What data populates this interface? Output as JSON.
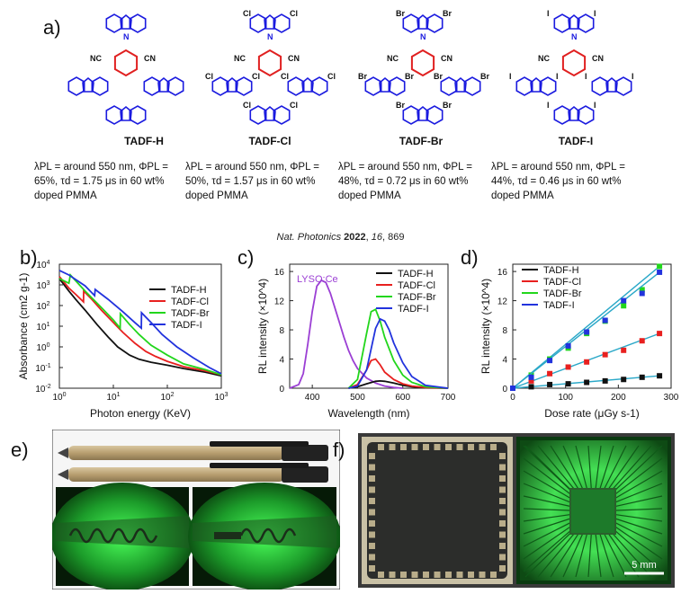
{
  "panels": {
    "a": "a)",
    "b": "b)",
    "c": "c)",
    "d": "d)",
    "e": "e)",
    "f": "f)"
  },
  "molecules": [
    {
      "name": "TADF-H",
      "halogen": "",
      "props": "λPL = around 550 nm, ΦPL = 65%, τd = 1.75 μs in 60 wt% doped PMMA"
    },
    {
      "name": "TADF-Cl",
      "halogen": "Cl",
      "props": "λPL = around 550 nm, ΦPL = 50%, τd = 1.57 μs in 60 wt% doped PMMA"
    },
    {
      "name": "TADF-Br",
      "halogen": "Br",
      "props": "λPL = around 550 nm, ΦPL = 48%, τd = 0.72 μs in 60 wt% doped PMMA"
    },
    {
      "name": "TADF-I",
      "halogen": "I",
      "props": "λPL = around 550 nm, ΦPL = 44%, τd = 0.46 μs in 60 wt% doped PMMA"
    }
  ],
  "structure": {
    "cn": "CN",
    "nc": "NC",
    "n": "N"
  },
  "citation": {
    "journal": "Nat. Photonics",
    "year": "2022",
    "volume": "16",
    "page": ", 869"
  },
  "colors": {
    "h": "#111111",
    "cl": "#e8201f",
    "br": "#22d61c",
    "i": "#2233dd",
    "lyso": "#9b3fd4",
    "mol": "#1a1adf",
    "core": "#e02020"
  },
  "photo_f_scale": "5 mm",
  "chart_data": [
    {
      "type": "line",
      "panel": "b",
      "xlabel": "Photon energy (KeV)",
      "ylabel": "Absorbance (cm2 g-1)",
      "xscale": "log",
      "yscale": "log",
      "xlim": [
        1,
        1000
      ],
      "ylim": [
        0.01,
        10000
      ],
      "xticks": [
        "10^0",
        "10^1",
        "10^2",
        "10^3"
      ],
      "yticks": [
        "10^-2",
        "10^-1",
        "10^0",
        "10^1",
        "10^2",
        "10^3",
        "10^4"
      ],
      "legend": [
        "TADF-H",
        "TADF-Cl",
        "TADF-Br",
        "TADF-I"
      ],
      "series": [
        {
          "name": "TADF-H",
          "x": [
            1,
            1.5,
            2,
            3,
            5,
            8,
            12,
            20,
            30,
            50,
            100,
            200,
            500,
            1000
          ],
          "y": [
            2000,
            500,
            200,
            60,
            12,
            3,
            1,
            0.4,
            0.25,
            0.18,
            0.13,
            0.09,
            0.06,
            0.04
          ]
        },
        {
          "name": "TADF-Cl",
          "x": [
            1,
            1.5,
            2,
            2.8,
            2.82,
            4,
            6,
            10,
            15,
            25,
            40,
            60,
            100,
            200,
            500,
            1000
          ],
          "y": [
            2500,
            700,
            350,
            150,
            500,
            200,
            60,
            15,
            5,
            1.5,
            0.6,
            0.35,
            0.2,
            0.11,
            0.07,
            0.045
          ]
        },
        {
          "name": "TADF-Br",
          "x": [
            1,
            1.5,
            1.6,
            3,
            6,
            10,
            13.4,
            13.5,
            20,
            30,
            50,
            100,
            200,
            500,
            1000
          ],
          "y": [
            2000,
            1200,
            3000,
            500,
            80,
            20,
            8,
            40,
            12,
            4,
            1.2,
            0.4,
            0.15,
            0.08,
            0.045
          ]
        },
        {
          "name": "TADF-I",
          "x": [
            1,
            1.5,
            3,
            4.5,
            4.6,
            8,
            15,
            25,
            33,
            33.2,
            50,
            80,
            150,
            300,
            600,
            1000
          ],
          "y": [
            5000,
            3000,
            900,
            300,
            600,
            200,
            50,
            15,
            8,
            45,
            15,
            4,
            1,
            0.3,
            0.1,
            0.05
          ]
        }
      ]
    },
    {
      "type": "line",
      "panel": "c",
      "xlabel": "Wavelength (nm)",
      "ylabel": "RL intensity (×10^4)",
      "xlim": [
        350,
        700
      ],
      "ylim": [
        0,
        17
      ],
      "xticks": [
        "400",
        "500",
        "600",
        "700"
      ],
      "yticks": [
        "0",
        "4",
        "8",
        "12",
        "16"
      ],
      "legend": [
        "TADF-H",
        "TADF-Cl",
        "TADF-Br",
        "TADF-I"
      ],
      "annotation": "LYSO:Ce",
      "series": [
        {
          "name": "LYSO:Ce",
          "x": [
            350,
            370,
            380,
            390,
            400,
            410,
            420,
            430,
            440,
            450,
            460,
            470,
            480,
            490,
            500,
            520,
            540,
            560,
            580,
            600
          ],
          "y": [
            0,
            0.5,
            2,
            6,
            10.5,
            14,
            14.8,
            14.5,
            13,
            11,
            9,
            7,
            5.2,
            3.8,
            2.7,
            1.4,
            0.7,
            0.3,
            0.1,
            0
          ]
        },
        {
          "name": "TADF-H",
          "x": [
            480,
            500,
            520,
            540,
            550,
            560,
            580,
            600,
            620,
            650,
            700
          ],
          "y": [
            0,
            0.2,
            0.6,
            0.95,
            1.0,
            0.95,
            0.7,
            0.4,
            0.2,
            0.05,
            0
          ]
        },
        {
          "name": "TADF-Cl",
          "x": [
            480,
            500,
            520,
            530,
            540,
            550,
            560,
            580,
            600,
            620,
            650,
            700
          ],
          "y": [
            0,
            0.5,
            2.5,
            3.8,
            4.0,
            3.2,
            2.2,
            1.2,
            0.6,
            0.3,
            0.1,
            0
          ]
        },
        {
          "name": "TADF-Br",
          "x": [
            480,
            500,
            520,
            530,
            540,
            550,
            560,
            580,
            600,
            620,
            650,
            700
          ],
          "y": [
            0,
            1.2,
            7.5,
            10.5,
            10.8,
            9.2,
            7,
            3.8,
            1.8,
            0.8,
            0.2,
            0
          ]
        },
        {
          "name": "TADF-I",
          "x": [
            480,
            500,
            520,
            540,
            550,
            560,
            570,
            580,
            600,
            620,
            650,
            700
          ],
          "y": [
            0,
            0.3,
            2.5,
            8.2,
            9.5,
            9.2,
            8,
            6.2,
            3.5,
            1.6,
            0.4,
            0
          ]
        }
      ]
    },
    {
      "type": "scatter",
      "panel": "d",
      "xlabel": "Dose rate (μGy s-1)",
      "ylabel": "RL intensity (×10^4)",
      "xlim": [
        0,
        300
      ],
      "ylim": [
        0,
        17
      ],
      "xticks": [
        "0",
        "100",
        "200",
        "300"
      ],
      "yticks": [
        "0",
        "4",
        "8",
        "12",
        "16"
      ],
      "legend": [
        "TADF-H",
        "TADF-Cl",
        "TADF-Br",
        "TADF-I"
      ],
      "x": [
        0,
        35,
        70,
        105,
        140,
        175,
        210,
        245,
        278
      ],
      "series": [
        {
          "name": "TADF-H",
          "values": [
            0,
            0.2,
            0.5,
            0.6,
            0.8,
            1.0,
            1.2,
            1.5,
            1.7
          ]
        },
        {
          "name": "TADF-Cl",
          "values": [
            0,
            1.0,
            2.0,
            2.9,
            3.6,
            4.6,
            5.2,
            6.5,
            7.5
          ]
        },
        {
          "name": "TADF-Br",
          "values": [
            0,
            1.8,
            4.0,
            5.5,
            7.5,
            9.2,
            11.3,
            13.5,
            16.7
          ]
        },
        {
          "name": "TADF-I",
          "values": [
            0,
            1.5,
            3.8,
            5.8,
            7.7,
            9.3,
            12.0,
            13.0,
            15.9
          ]
        }
      ]
    }
  ]
}
